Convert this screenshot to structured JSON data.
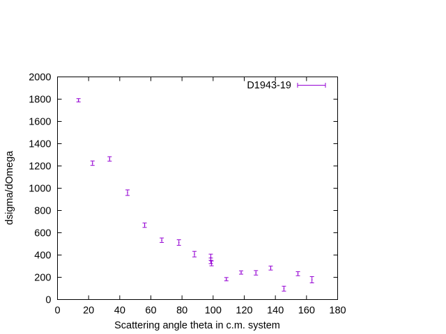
{
  "chart_data": {
    "type": "scatter",
    "title": "",
    "xlabel": "Scattering angle theta in c.m. system",
    "ylabel": "dsigma/dOmega",
    "xlim": [
      0,
      180
    ],
    "ylim": [
      0,
      2000
    ],
    "xticks": [
      0,
      20,
      40,
      60,
      80,
      100,
      120,
      140,
      160,
      180
    ],
    "yticks": [
      0,
      200,
      400,
      600,
      800,
      1000,
      1200,
      1400,
      1600,
      1800,
      2000
    ],
    "grid": false,
    "legend_position": "top-right",
    "series": [
      {
        "name": "D1943-19",
        "color": "#9400d3",
        "marker": "errorbar",
        "points": [
          {
            "x": 13.5,
            "y": 1790,
            "err": 15
          },
          {
            "x": 22.5,
            "y": 1225,
            "err": 20
          },
          {
            "x": 33.5,
            "y": 1263,
            "err": 20
          },
          {
            "x": 45,
            "y": 960,
            "err": 25
          },
          {
            "x": 56,
            "y": 668,
            "err": 20
          },
          {
            "x": 67,
            "y": 533,
            "err": 20
          },
          {
            "x": 78,
            "y": 512,
            "err": 25
          },
          {
            "x": 88,
            "y": 408,
            "err": 25
          },
          {
            "x": 98.5,
            "y": 380,
            "err": 28
          },
          {
            "x": 98.5,
            "y": 348,
            "err": 25
          },
          {
            "x": 99,
            "y": 325,
            "err": 22
          },
          {
            "x": 108.5,
            "y": 183,
            "err": 15
          },
          {
            "x": 118,
            "y": 243,
            "err": 15
          },
          {
            "x": 127.5,
            "y": 240,
            "err": 20
          },
          {
            "x": 137,
            "y": 283,
            "err": 18
          },
          {
            "x": 145.5,
            "y": 98,
            "err": 22
          },
          {
            "x": 154.5,
            "y": 232,
            "err": 18
          },
          {
            "x": 163.5,
            "y": 178,
            "err": 28
          }
        ]
      }
    ]
  }
}
